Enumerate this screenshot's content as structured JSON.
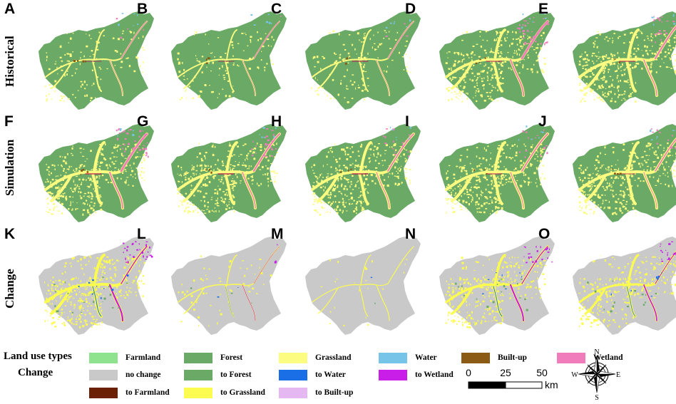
{
  "row_labels": [
    "Historical",
    "Simulation",
    "Change"
  ],
  "panels": [
    {
      "letter": "A",
      "mode": "hist",
      "green": "#6aaa66",
      "yellow": 0.35,
      "pink": 0.1,
      "red": 0.55
    },
    {
      "letter": "B",
      "mode": "hist",
      "green": "#6aaa66",
      "yellow": 0.3,
      "pink": 0.08,
      "red": 0.5
    },
    {
      "letter": "C",
      "mode": "hist",
      "green": "#6aaa66",
      "yellow": 0.35,
      "pink": 0.1,
      "red": 0.6
    },
    {
      "letter": "D",
      "mode": "hist",
      "green": "#6aaa66",
      "yellow": 0.9,
      "pink": 0.9,
      "red": 0.7
    },
    {
      "letter": "E",
      "mode": "hist",
      "green": "#6aaa66",
      "yellow": 1.0,
      "pink": 0.6,
      "red": 0.6
    },
    {
      "letter": "F",
      "mode": "sim",
      "green": "#6aaa66",
      "yellow": 1.0,
      "pink": 0.9,
      "red": 0.8
    },
    {
      "letter": "G",
      "mode": "sim",
      "green": "#6aaa66",
      "yellow": 0.95,
      "pink": 0.6,
      "red": 0.8
    },
    {
      "letter": "H",
      "mode": "sim",
      "green": "#6aaa66",
      "yellow": 0.95,
      "pink": 0.4,
      "red": 0.8
    },
    {
      "letter": "I",
      "mode": "sim",
      "green": "#6aaa66",
      "yellow": 1.0,
      "pink": 0.4,
      "red": 0.6
    },
    {
      "letter": "J",
      "mode": "sim",
      "green": "#6aaa66",
      "yellow": 1.0,
      "pink": 0.3,
      "red": 0.5
    },
    {
      "letter": "K",
      "mode": "chg",
      "yellow": 1.0,
      "purple": 0.9
    },
    {
      "letter": "L",
      "mode": "chg",
      "yellow": 0.15,
      "purple": 0.1
    },
    {
      "letter": "M",
      "mode": "chg",
      "yellow": 0.05,
      "purple": 0.0
    },
    {
      "letter": "N",
      "mode": "chg",
      "yellow": 0.8,
      "purple": 0.8
    },
    {
      "letter": "O",
      "mode": "chg",
      "yellow": 0.7,
      "purple": 0.6
    }
  ],
  "legend": {
    "land_use_title": "Land use types",
    "change_title": "Change",
    "land_use_items": [
      {
        "label": "Farmland",
        "color": "#8fe38f"
      },
      {
        "label": "Forest",
        "color": "#6aaa66"
      },
      {
        "label": "Grassland",
        "color": "#fcfc80"
      },
      {
        "label": "Water",
        "color": "#76c5e8"
      },
      {
        "label": "Built-up",
        "color": "#8b5a14"
      },
      {
        "label": "Wetland",
        "color": "#f07cbc"
      }
    ],
    "change_items": [
      {
        "label": "no change",
        "color": "#c9c9c9"
      },
      {
        "label": "to Forest",
        "color": "#6aaa66"
      },
      {
        "label": "to Water",
        "color": "#1a6ee6"
      },
      {
        "label": "to Wetland",
        "color": "#c81ee8"
      },
      {
        "label": "to Farmland",
        "color": "#6b1f05"
      },
      {
        "label": "to Grassland",
        "color": "#fcfc50"
      },
      {
        "label": "to Built-up",
        "color": "#e6b8f2"
      }
    ]
  },
  "scale_bar": {
    "ticks": [
      "0",
      "25",
      "50"
    ],
    "unit": "km"
  },
  "compass": {
    "n": "N",
    "s": "S",
    "e": "E",
    "w": "W"
  }
}
